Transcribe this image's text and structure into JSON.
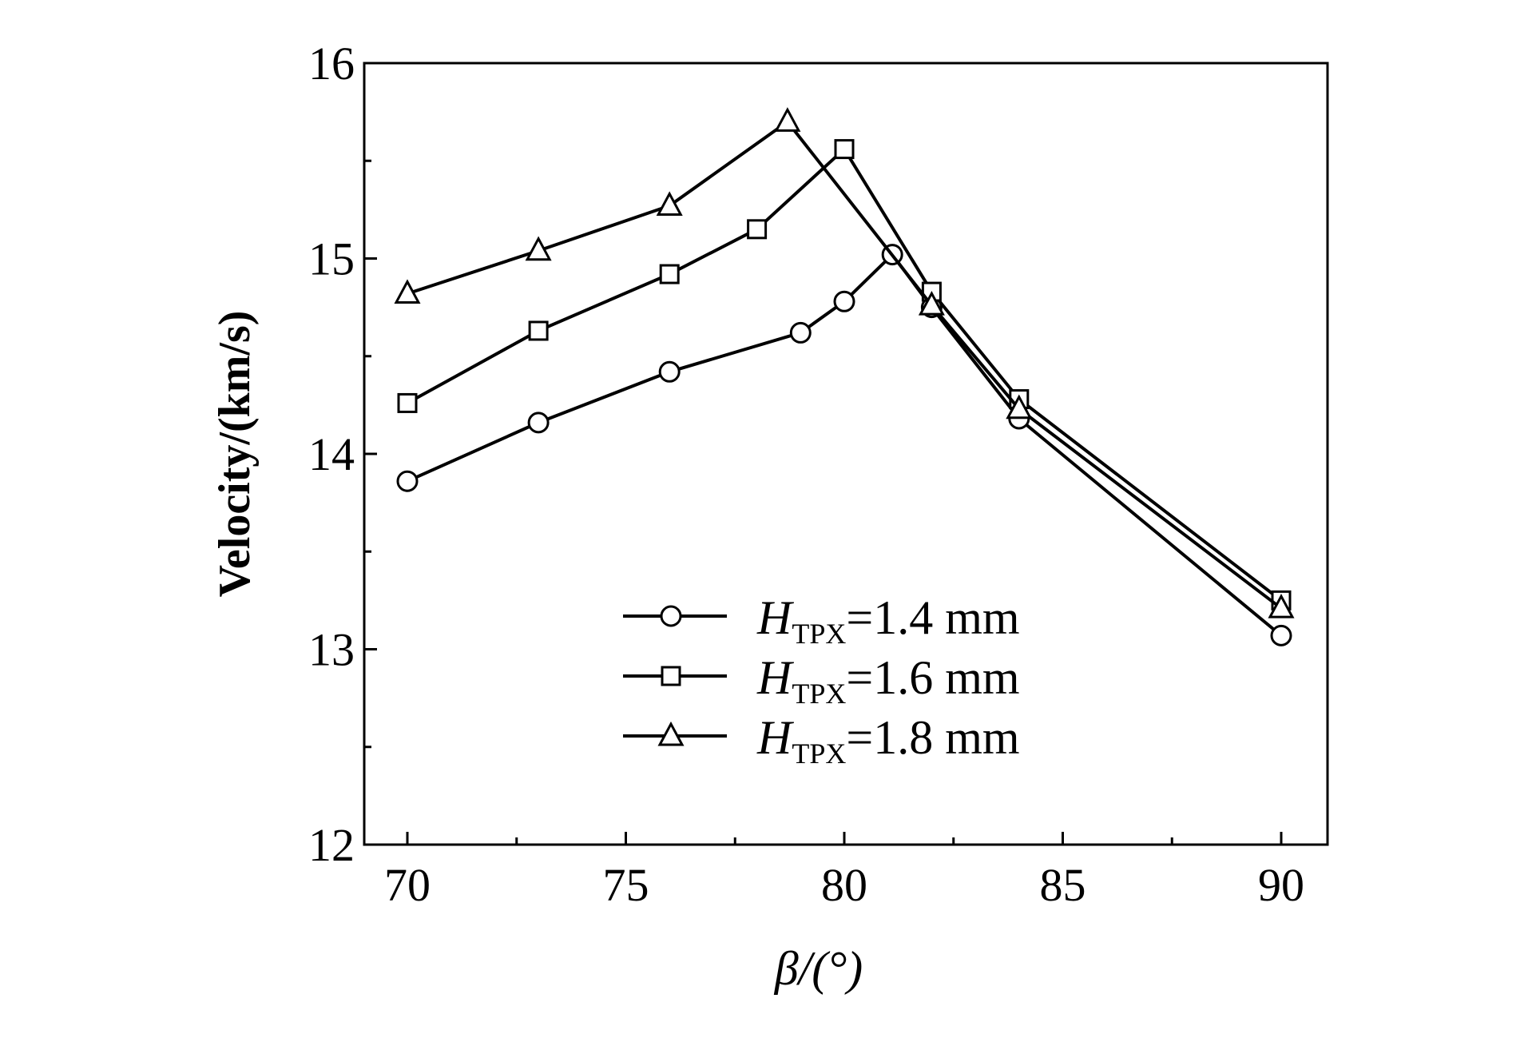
{
  "chart_data": {
    "type": "line",
    "title": "",
    "xlabel": "β/(°)",
    "ylabel": "Velocity/(km/s)",
    "xlim": [
      69,
      91
    ],
    "ylim": [
      12,
      16
    ],
    "xticks": [
      70,
      75,
      80,
      85,
      90
    ],
    "yticks": [
      12,
      13,
      14,
      15,
      16
    ],
    "xtick_labels": [
      "70",
      "75",
      "80",
      "85",
      "90"
    ],
    "ytick_labels": [
      "12",
      "13",
      "14",
      "15",
      "16"
    ],
    "grid": false,
    "legend_position": "lower-center",
    "series": [
      {
        "name": "H_TPX=1.4 mm",
        "legend_main": "H",
        "legend_sub": "TPX",
        "legend_rest": "=1.4 mm",
        "marker": "circle",
        "x": [
          70,
          73,
          76,
          79,
          80,
          81.1,
          82,
          84,
          90
        ],
        "y": [
          13.86,
          14.16,
          14.42,
          14.62,
          14.78,
          15.02,
          14.75,
          14.18,
          13.07
        ]
      },
      {
        "name": "H_TPX=1.6 mm",
        "legend_main": "H",
        "legend_sub": "TPX",
        "legend_rest": "=1.6 mm",
        "marker": "square",
        "x": [
          70,
          73,
          76,
          78,
          80,
          82,
          84,
          90
        ],
        "y": [
          14.26,
          14.63,
          14.92,
          15.15,
          15.56,
          14.83,
          14.28,
          13.25
        ]
      },
      {
        "name": "H_TPX=1.8 mm",
        "legend_main": "H",
        "legend_sub": "TPX",
        "legend_rest": "=1.8 mm",
        "marker": "triangle",
        "x": [
          70,
          73,
          76,
          78.7,
          82,
          84,
          90
        ],
        "y": [
          14.82,
          15.04,
          15.27,
          15.7,
          14.76,
          14.23,
          13.21
        ]
      }
    ],
    "colors": {
      "line": "#000000",
      "background": "#ffffff"
    }
  }
}
